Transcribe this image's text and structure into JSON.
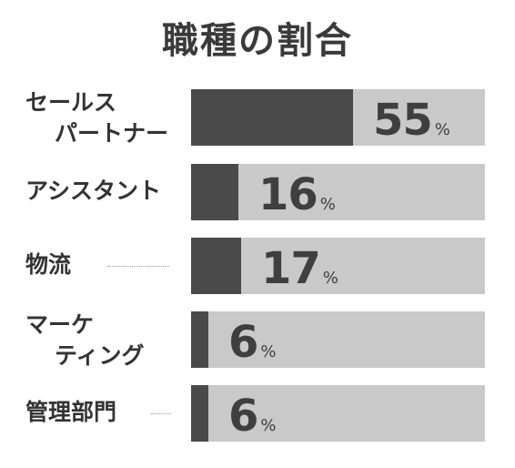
{
  "chart_data": {
    "type": "bar",
    "title": "職種の割合",
    "orientation": "horizontal",
    "categories": [
      "セールスパートナー",
      "アシスタント",
      "物流",
      "マーケティング",
      "管理部門"
    ],
    "category_lines": [
      [
        "セールス",
        "パートナー"
      ],
      [
        "アシスタント"
      ],
      [
        "物流"
      ],
      [
        "マーケ",
        "ティング"
      ],
      [
        "管理部門"
      ]
    ],
    "values": [
      55,
      16,
      17,
      6,
      6
    ],
    "value_labels": [
      "55",
      "16",
      "17",
      "6",
      "6"
    ],
    "unit": "%",
    "xlim": [
      0,
      100
    ],
    "colors": {
      "fill": "#4a4a4a",
      "track": "#c9c9c9",
      "text": "#333333"
    }
  }
}
